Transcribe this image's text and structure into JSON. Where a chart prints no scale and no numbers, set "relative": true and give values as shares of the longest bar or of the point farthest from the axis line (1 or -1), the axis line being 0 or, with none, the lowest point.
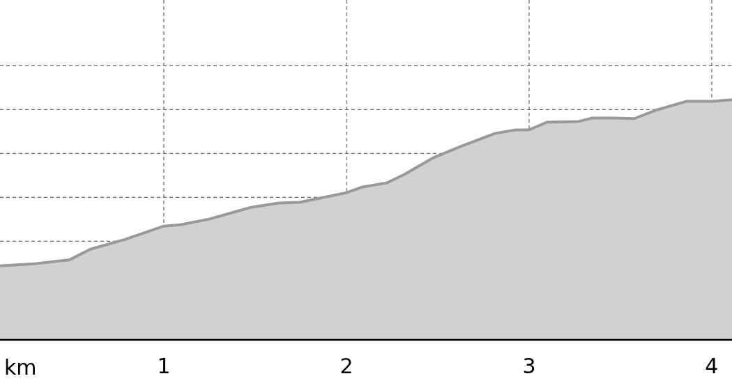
{
  "chart_data": {
    "type": "area",
    "xlabel": "km",
    "relative": true,
    "x": [
      0.103,
      0.294,
      0.485,
      0.599,
      0.79,
      1.0,
      1.095,
      1.248,
      1.477,
      1.63,
      1.744,
      2.0,
      2.088,
      2.221,
      2.317,
      2.469,
      2.622,
      2.813,
      2.927,
      3.0,
      3.099,
      3.271,
      3.347,
      3.462,
      3.576,
      3.691,
      3.863,
      4.0,
      4.111
    ],
    "series": [
      {
        "color": "#999999",
        "values": [
          0.308,
          0.317,
          0.334,
          0.378,
          0.419,
          0.474,
          0.48,
          0.503,
          0.552,
          0.57,
          0.573,
          0.613,
          0.637,
          0.654,
          0.689,
          0.756,
          0.805,
          0.86,
          0.875,
          0.875,
          0.907,
          0.91,
          0.924,
          0.924,
          0.922,
          0.956,
          0.994,
          0.994,
          1.0
        ]
      }
    ],
    "xlim": [
      0.103,
      4.111
    ],
    "xticks": [
      1,
      2,
      3,
      4
    ],
    "grid": true,
    "tick_labels": "x",
    "line_style": "solid",
    "marker": "none"
  }
}
